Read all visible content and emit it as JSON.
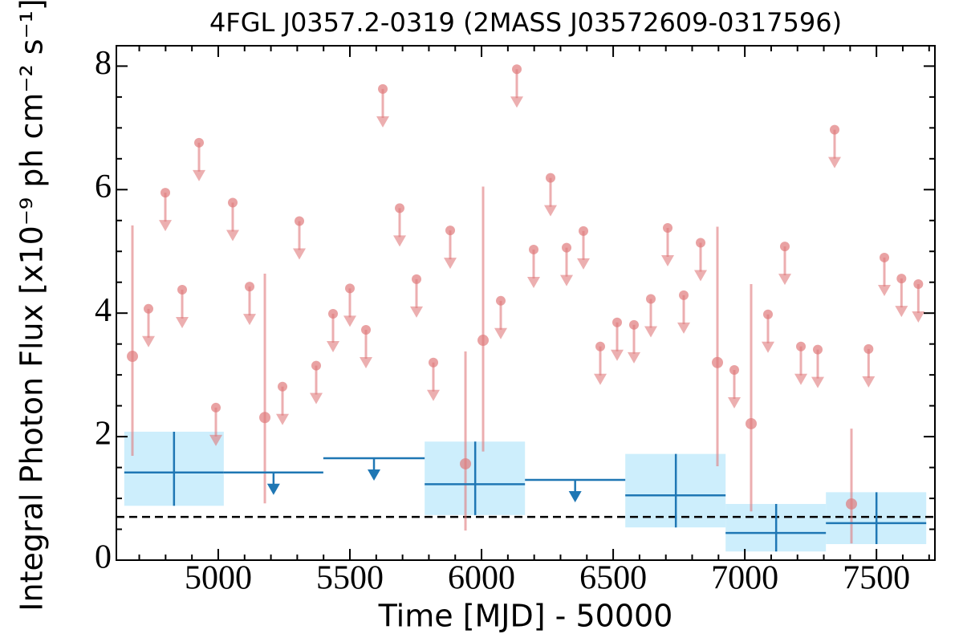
{
  "chart_data": {
    "type": "lightcurve",
    "title": "4FGL J0357.2-0319 (2MASS J03572609-0317596)",
    "xlabel": "Time [MJD] - 50000",
    "ylabel": "Integral Photon Flux [x10⁻⁹ ph cm⁻² s⁻¹]",
    "xlim": [
      4613,
      7722
    ],
    "ylim": [
      0,
      8.33
    ],
    "xticks": [
      5000,
      5500,
      6000,
      6500,
      7000,
      7500
    ],
    "yticks": [
      0,
      2,
      4,
      6,
      8
    ],
    "xminorticks": [
      4700,
      4800,
      4900,
      5100,
      5200,
      5300,
      5400,
      5600,
      5700,
      5800,
      5900,
      6100,
      6200,
      6300,
      6400,
      6600,
      6700,
      6800,
      6900,
      7100,
      7200,
      7300,
      7400,
      7600,
      7700
    ],
    "yminorticks": [
      0.5,
      1,
      1.5,
      2.5,
      3,
      3.5,
      4.5,
      5,
      5.5,
      6.5,
      7,
      7.5
    ],
    "reference_line": 0.7,
    "series": [
      {
        "color": "#e07a7c",
        "x": [
          4674,
          5177,
          5939,
          6006,
          6896,
          7024,
          7405
        ],
        "values": [
          3.3,
          2.31,
          1.56,
          3.56,
          3.2,
          2.21,
          0.91
        ],
        "lower": [
          1.69,
          0.92,
          0.48,
          1.76,
          1.52,
          0.79,
          0.27
        ],
        "upper": [
          5.42,
          4.64,
          3.38,
          6.05,
          5.4,
          4.47,
          2.13
        ]
      },
      {
        "color": "#e07a7c",
        "x": [
          4735,
          4799,
          4863,
          4927,
          4991,
          5055,
          5119,
          5244,
          5308,
          5372,
          5436,
          5500,
          5561,
          5625,
          5689,
          5753,
          5817,
          5881,
          6073,
          6134,
          6198,
          6262,
          6323,
          6387,
          6451,
          6515,
          6579,
          6643,
          6707,
          6768,
          6832,
          6960,
          7088,
          7152,
          7213,
          7277,
          7341,
          7470,
          7530,
          7595,
          7659
        ],
        "values": [
          4.07,
          5.95,
          4.38,
          6.76,
          2.47,
          5.79,
          4.43,
          2.81,
          5.49,
          3.15,
          3.99,
          4.4,
          3.73,
          7.63,
          5.7,
          4.55,
          3.2,
          5.34,
          4.2,
          7.95,
          5.03,
          6.19,
          5.06,
          5.33,
          3.46,
          3.85,
          3.81,
          4.23,
          5.38,
          4.29,
          5.14,
          3.08,
          3.98,
          5.08,
          3.46,
          3.41,
          6.97,
          3.42,
          4.9,
          4.56,
          4.47
        ]
      },
      {
        "color": "#1f77b4",
        "box_color": "#cdeefc",
        "x": [
          4832,
          5976,
          6738,
          7119,
          7500
        ],
        "x_low": [
          4643,
          5784,
          6546,
          6927,
          7308
        ],
        "x_high": [
          5021,
          6165,
          6927,
          7308,
          7689
        ],
        "values": [
          1.42,
          1.23,
          1.05,
          0.44,
          0.6
        ],
        "lower": [
          0.88,
          0.73,
          0.53,
          0.14,
          0.26
        ],
        "upper": [
          2.08,
          1.92,
          1.72,
          0.91,
          1.1
        ]
      },
      {
        "color": "#1f77b4",
        "x_low": [
          5021,
          5399,
          6165
        ],
        "x_high": [
          5399,
          5784,
          6546
        ],
        "values": [
          1.42,
          1.65,
          1.3
        ]
      }
    ]
  }
}
